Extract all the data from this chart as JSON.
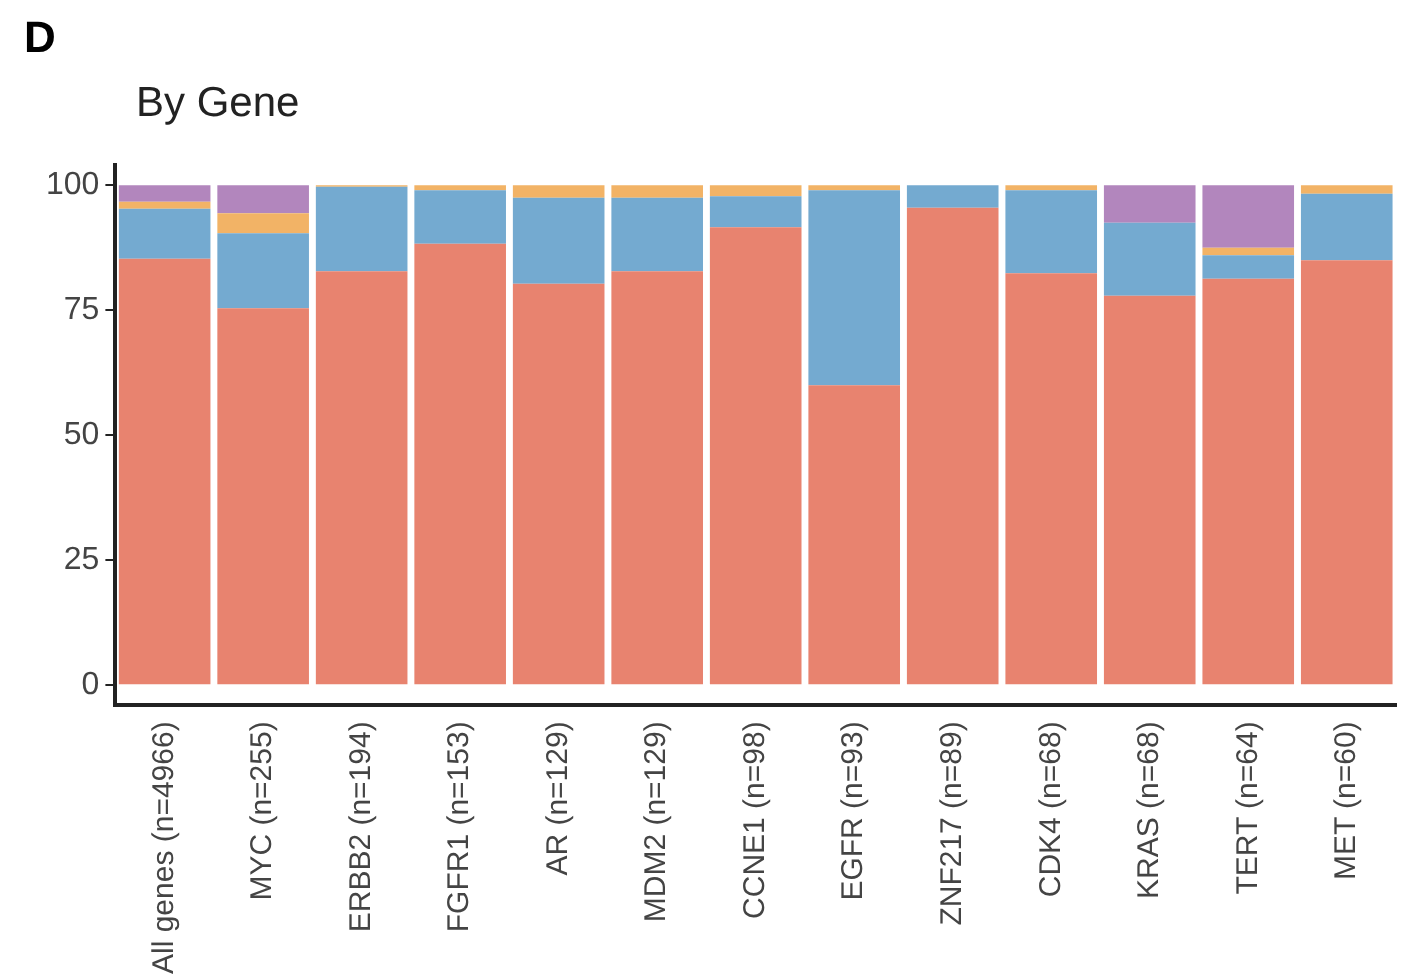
{
  "chart_data": {
    "type": "bar",
    "title": "By Gene",
    "annotations": [
      "D"
    ],
    "stacked": true,
    "categories": [
      "All genes (n=4966)",
      "MYC (n=255)",
      "ERBB2 (n=194)",
      "FGFR1 (n=153)",
      "AR (n=129)",
      "MDM2 (n=129)",
      "CCNE1 (n=98)",
      "EGFR (n=93)",
      "ZNF217 (n=89)",
      "CDK4 (n=68)",
      "KRAS (n=68)",
      "TERT (n=64)",
      "MET (n=60)"
    ],
    "series": [
      {
        "color": "#e8836f",
        "values": [
          85.3,
          75.4,
          82.8,
          88.3,
          80.3,
          82.8,
          91.6,
          60,
          95.5,
          82.4,
          77.9,
          81.3,
          85
        ]
      },
      {
        "color": "#74aad0",
        "values": [
          10,
          15,
          16.9,
          10.7,
          17.2,
          14.7,
          6.2,
          39,
          4.5,
          16.6,
          14.6,
          4.7,
          13.3
        ]
      },
      {
        "color": "#f2b366",
        "values": [
          1.4,
          4,
          0.3,
          1,
          2.5,
          2.5,
          2.2,
          1,
          0,
          1,
          0,
          1.5,
          1.7
        ]
      },
      {
        "color": "#b286bd",
        "values": [
          3.3,
          5.6,
          0,
          0,
          0,
          0,
          0,
          0,
          0,
          0,
          7.5,
          12.5,
          0
        ]
      }
    ],
    "ylim": [
      -4,
      104
    ],
    "yticks": [
      0,
      25,
      50,
      75,
      100
    ],
    "grid": false,
    "legend": false
  }
}
